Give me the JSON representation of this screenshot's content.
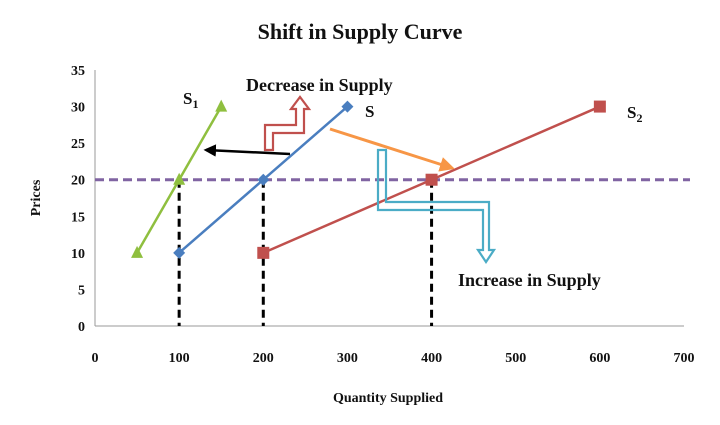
{
  "chart_data": {
    "type": "line",
    "title": "Shift in Supply Curve",
    "xlabel": "Quantity Supplied",
    "ylabel": "Prices",
    "xlim": [
      0,
      700
    ],
    "ylim": [
      0,
      35
    ],
    "x_ticks": [
      "0",
      "100",
      "200",
      "300",
      "400",
      "500",
      "600",
      "700"
    ],
    "y_ticks": [
      "0",
      "5",
      "10",
      "15",
      "20",
      "25",
      "30",
      "35"
    ],
    "grid": false,
    "series": [
      {
        "name": "S",
        "sub": "",
        "color": "#4a7ebf",
        "marker": "diamond",
        "points": [
          [
            100,
            10
          ],
          [
            200,
            20
          ],
          [
            300,
            30
          ]
        ]
      },
      {
        "name": "S",
        "sub": "1",
        "color": "#8fbf3f",
        "marker": "triangle",
        "points": [
          [
            50,
            10
          ],
          [
            100,
            20
          ],
          [
            150,
            30
          ]
        ]
      },
      {
        "name": "S",
        "sub": "2",
        "color": "#c0504d",
        "marker": "square",
        "points": [
          [
            200,
            10
          ],
          [
            400,
            20
          ],
          [
            600,
            30
          ]
        ]
      }
    ],
    "reference_line": {
      "y": 20,
      "color": "#8064a2",
      "style": "dashed"
    },
    "drop_lines": [
      {
        "x": 100,
        "y": 20
      },
      {
        "x": 200,
        "y": 20
      },
      {
        "x": 400,
        "y": 20
      }
    ],
    "annotations": [
      {
        "text": "Decrease in Supply"
      },
      {
        "text": "Increase in Supply"
      }
    ],
    "colors": {
      "shift_left_arrow": "#000000",
      "shift_right_arrow": "#f79646",
      "decrease_bent_arrow": "#c0504d",
      "increase_bent_arrow": "#4bacc6"
    }
  }
}
